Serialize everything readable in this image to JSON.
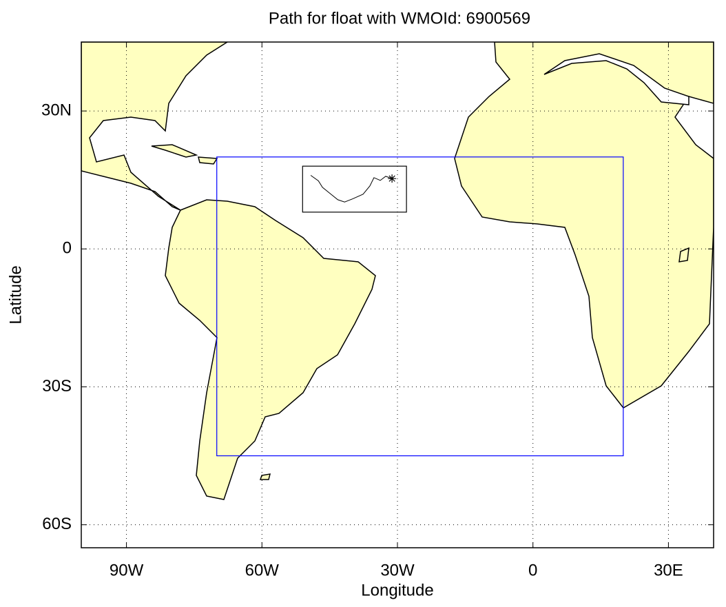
{
  "chart_data": {
    "type": "map",
    "title": "Path for float with WMOId: 6900569",
    "x_label": "Longitude",
    "y_label": "Latitude",
    "xlim": [
      -100,
      40
    ],
    "ylim": [
      -65,
      45
    ],
    "xticks": [
      {
        "value": -90,
        "label": "90W"
      },
      {
        "value": -60,
        "label": "60W"
      },
      {
        "value": -30,
        "label": "30W"
      },
      0,
      {
        "value": 30,
        "label": "30E"
      }
    ],
    "yticks": [
      {
        "value": 30,
        "label": "30N"
      },
      0,
      {
        "value": -30,
        "label": "30S"
      },
      {
        "value": -60,
        "label": "60S"
      }
    ],
    "grid": true,
    "land_color": "#ffffc0",
    "region": {
      "lon": [
        -70,
        20
      ],
      "lat": [
        -45,
        20
      ],
      "color": "#0000ff"
    },
    "inset": {
      "lon": [
        -51,
        -28
      ],
      "lat": [
        8,
        18
      ]
    },
    "track": {
      "x": [
        -49.2,
        -47.5,
        -46.6,
        -45.1,
        -43.2,
        -41.7,
        -39.9,
        -37.6,
        -36.1,
        -35.2,
        -33.8,
        -32.6,
        -31.2
      ],
      "y": [
        16.0,
        14.8,
        13.4,
        12.2,
        10.7,
        10.2,
        10.9,
        11.9,
        13.7,
        15.5,
        14.9,
        15.8,
        15.3
      ]
    }
  }
}
